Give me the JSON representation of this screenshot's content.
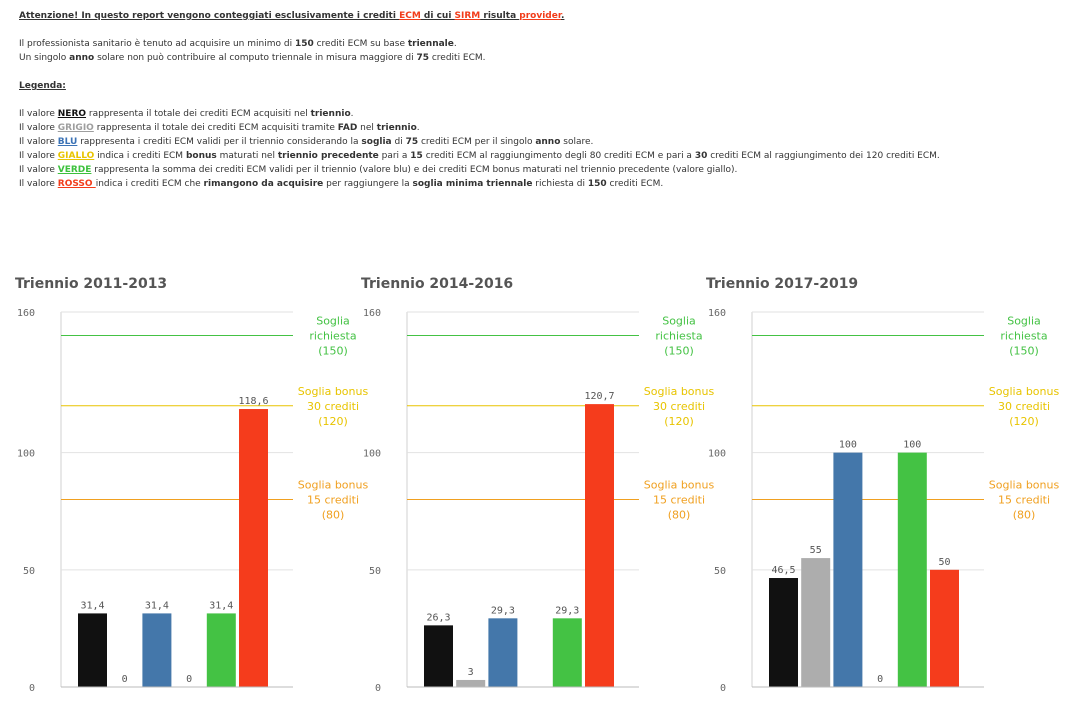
{
  "info": {
    "attention": {
      "p1": "Attenzione! In questo report vengono conteggiati esclusivamente i crediti ",
      "ecm": "ECM",
      "p2": " di cui ",
      "sirm": "SIRM",
      "p3": " risulta ",
      "provider": "provider",
      "p4": "."
    },
    "line1": {
      "p1": "Il professionista sanitario è tenuto ad acquisire un minimo di ",
      "b1": "150",
      "p2": " crediti ECM su base ",
      "b2": "triennale",
      "p3": "."
    },
    "line2": {
      "p1": "Un singolo ",
      "b1": "anno",
      "p2": " solare non può contribuire al computo triennale in misura maggiore di ",
      "b2": "75",
      "p3": " crediti ECM."
    },
    "legend_title": "Legenda:",
    "legend": {
      "nero": {
        "p1": "Il valore ",
        "key": "NERO",
        "p2": " rappresenta il totale dei crediti ECM acquisiti nel ",
        "b1": "triennio",
        "p3": "."
      },
      "grigio": {
        "p1": "Il valore ",
        "key": "GRIGIO",
        "p2": " rappresenta il totale dei crediti ECM acquisiti tramite ",
        "b1": "FAD",
        "p3": " nel ",
        "b2": "triennio",
        "p4": "."
      },
      "blu": {
        "p1": "Il valore ",
        "key": "BLU",
        "p2": " rappresenta i crediti ECM validi per il triennio considerando la ",
        "b1": "soglia",
        "p3": " di ",
        "b2": "75",
        "p4": " crediti ECM per il singolo ",
        "b3": "anno",
        "p5": " solare."
      },
      "giallo": {
        "p1": "Il valore ",
        "key": "GIALLO",
        "p2": " indica i crediti ECM ",
        "b1": "bonus",
        "p3": " maturati nel ",
        "b2": "triennio precedente",
        "p4": " pari a ",
        "b3": "15",
        "p5": " crediti ECM al raggiungimento degli 80 crediti ECM e pari a ",
        "b4": "30",
        "p6": " crediti ECM al raggiungimento dei 120 crediti ECM."
      },
      "verde": {
        "p1": "Il valore ",
        "key": "VERDE",
        "p2": " rappresenta la somma dei crediti ECM validi per il triennio (valore blu) e dei crediti ECM bonus maturati nel triennio precedente (valore giallo)."
      },
      "rosso": {
        "p1": "Il valore ",
        "key": "ROSSO ",
        "p2": "indica i crediti ECM che ",
        "b1": "rimangono da acquisire",
        "p3": " per raggiungere la ",
        "b2": "soglia minima triennale",
        "p4": " richiesta di ",
        "b3": "150",
        "p5": " crediti ECM."
      }
    }
  },
  "colors": {
    "nero": "#111111",
    "grigio": "#adadad",
    "blu": "#4477aa",
    "giallo": "#e8c400",
    "verde": "#44c244",
    "rosso": "#f53c1c",
    "soglia_richiesta": "#44c244",
    "soglia_30": "#e8c400",
    "soglia_15": "#f0a020"
  },
  "chart_data": [
    {
      "type": "bar",
      "title": "Triennio 2011-2013",
      "categories": [
        "nero",
        "grigio",
        "blu",
        "giallo",
        "verde",
        "rosso"
      ],
      "values": [
        31.4,
        0,
        31.4,
        0,
        31.4,
        118.6
      ],
      "value_labels": [
        "31,4",
        "0",
        "31,4",
        "0",
        "31,4",
        "118,6"
      ],
      "ylim": [
        0,
        160
      ],
      "yticks": [
        0,
        50,
        100,
        160
      ],
      "ytick_labels": [
        "0",
        "50",
        "100",
        "160"
      ],
      "reference_lines": [
        {
          "value": 150,
          "label_lines": [
            "Soglia",
            "richiesta",
            "(150)"
          ],
          "color_key": "soglia_richiesta"
        },
        {
          "value": 120,
          "label_lines": [
            "Soglia bonus",
            "30 crediti",
            "(120)"
          ],
          "color_key": "soglia_30"
        },
        {
          "value": 80,
          "label_lines": [
            "Soglia bonus",
            "15 crediti",
            "(80)"
          ],
          "color_key": "soglia_15"
        }
      ]
    },
    {
      "type": "bar",
      "title": "Triennio 2014-2016",
      "categories": [
        "nero",
        "grigio",
        "blu",
        "giallo",
        "verde",
        "rosso"
      ],
      "values": [
        26.3,
        3,
        29.3,
        null,
        29.3,
        120.7
      ],
      "value_labels": [
        "26,3",
        "3",
        "29,3",
        "",
        "29,3",
        "120,7"
      ],
      "ylim": [
        0,
        160
      ],
      "yticks": [
        0,
        50,
        100,
        160
      ],
      "ytick_labels": [
        "0",
        "50",
        "100",
        "160"
      ],
      "reference_lines": [
        {
          "value": 150,
          "label_lines": [
            "Soglia",
            "richiesta",
            "(150)"
          ],
          "color_key": "soglia_richiesta"
        },
        {
          "value": 120,
          "label_lines": [
            "Soglia bonus",
            "30 crediti",
            "(120)"
          ],
          "color_key": "soglia_30"
        },
        {
          "value": 80,
          "label_lines": [
            "Soglia bonus",
            "15 crediti",
            "(80)"
          ],
          "color_key": "soglia_15"
        }
      ]
    },
    {
      "type": "bar",
      "title": "Triennio 2017-2019",
      "categories": [
        "nero",
        "grigio",
        "blu",
        "giallo",
        "verde",
        "rosso"
      ],
      "values": [
        46.5,
        55,
        100,
        0,
        100,
        50
      ],
      "value_labels": [
        "46,5",
        "55",
        "100",
        "0",
        "100",
        "50"
      ],
      "ylim": [
        0,
        160
      ],
      "yticks": [
        0,
        50,
        100,
        160
      ],
      "ytick_labels": [
        "0",
        "50",
        "100",
        "160"
      ],
      "reference_lines": [
        {
          "value": 150,
          "label_lines": [
            "Soglia",
            "richiesta",
            "(150)"
          ],
          "color_key": "soglia_richiesta"
        },
        {
          "value": 120,
          "label_lines": [
            "Soglia bonus",
            "30 crediti",
            "(120)"
          ],
          "color_key": "soglia_30"
        },
        {
          "value": 80,
          "label_lines": [
            "Soglia bonus",
            "15 crediti",
            "(80)"
          ],
          "color_key": "soglia_15"
        }
      ]
    }
  ]
}
